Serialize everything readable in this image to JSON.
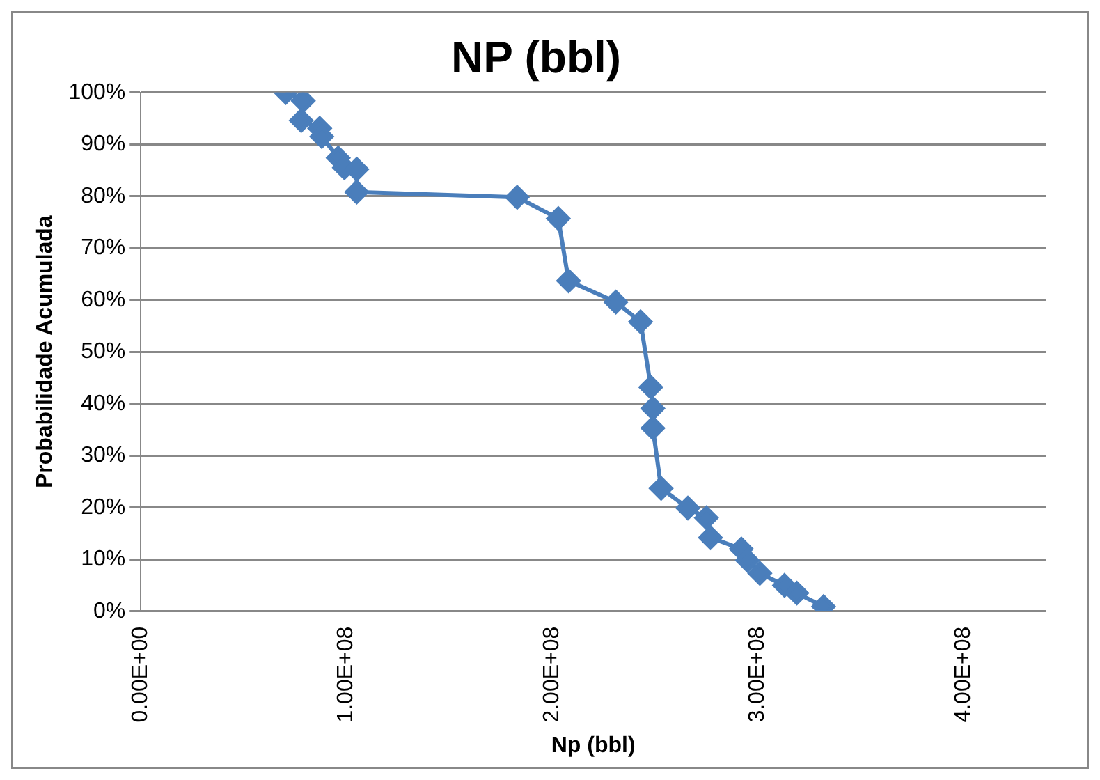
{
  "chart_data": {
    "type": "line",
    "title": "NP (bbl)",
    "xlabel": "Np (bbl)",
    "ylabel": "Probabilidade Acumulada",
    "series": [
      {
        "color": "#4a7ebb",
        "x": [
          70500000,
          79000000,
          78000000,
          87000000,
          88000000,
          96000000,
          99000000,
          105000000,
          105000000,
          183000000,
          203000000,
          208000000,
          231000000,
          243000000,
          248000000,
          249000000,
          249000000,
          253000000,
          266000000,
          275000000,
          277000000,
          292000000,
          295000000,
          301000000,
          313000000,
          319000000,
          332000000
        ],
        "values": [
          100,
          98.4,
          94.6,
          93.1,
          91.5,
          87.4,
          85.5,
          85.2,
          80.8,
          79.8,
          75.7,
          63.7,
          59.6,
          55.8,
          43.2,
          39.1,
          35.3,
          23.7,
          19.9,
          18,
          14.2,
          12,
          9.8,
          7.3,
          5,
          3.5,
          0.9
        ]
      }
    ],
    "xlim": [
      0,
      440000000
    ],
    "xticks": [
      {
        "value": 0,
        "label": "0.00E+00"
      },
      {
        "value": 100000000,
        "label": "1.00E+08"
      },
      {
        "value": 200000000,
        "label": "2.00E+08"
      },
      {
        "value": 300000000,
        "label": "3.00E+08"
      },
      {
        "value": 400000000,
        "label": "4.00E+08"
      }
    ],
    "ylim": [
      0,
      100
    ],
    "yticks": [
      {
        "value": 0,
        "label": "0%"
      },
      {
        "value": 10,
        "label": "10%"
      },
      {
        "value": 20,
        "label": "20%"
      },
      {
        "value": 30,
        "label": "30%"
      },
      {
        "value": 40,
        "label": "40%"
      },
      {
        "value": 50,
        "label": "50%"
      },
      {
        "value": 60,
        "label": "60%"
      },
      {
        "value": 70,
        "label": "70%"
      },
      {
        "value": 80,
        "label": "80%"
      },
      {
        "value": 90,
        "label": "90%"
      },
      {
        "value": 100,
        "label": "100%"
      }
    ],
    "grid": "y",
    "legend": false,
    "marker": "diamond",
    "line_style": "solid"
  }
}
